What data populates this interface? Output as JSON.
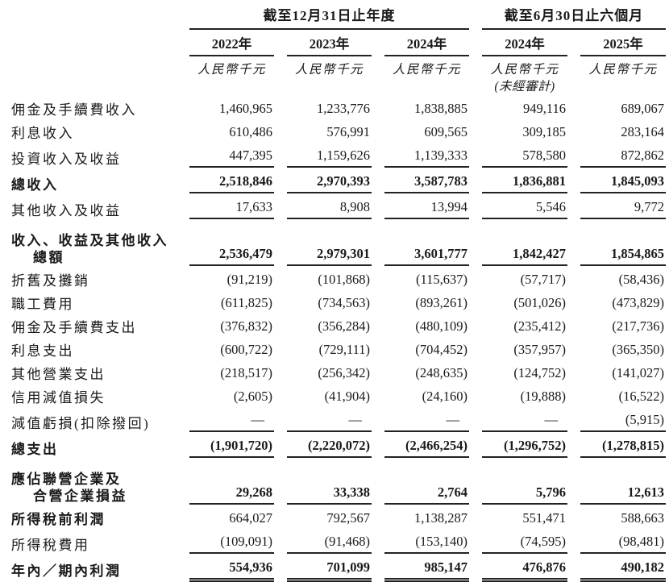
{
  "colors": {
    "text": "#1a1a1a",
    "rule": "#222222",
    "background": "#ffffff"
  },
  "header": {
    "groups": [
      {
        "label": "截至12月31日止年度",
        "span": 3
      },
      {
        "label": "截至6月30日止六個月",
        "span": 2
      }
    ],
    "columns": [
      {
        "year": "2022年",
        "unit": "人民幣千元",
        "note": ""
      },
      {
        "year": "2023年",
        "unit": "人民幣千元",
        "note": ""
      },
      {
        "year": "2024年",
        "unit": "人民幣千元",
        "note": ""
      },
      {
        "year": "2024年",
        "unit": "人民幣千元",
        "note": "(未經審計)"
      },
      {
        "year": "2025年",
        "unit": "人民幣千元",
        "note": ""
      }
    ]
  },
  "rows": [
    {
      "label": "佣金及手續費收入",
      "values": [
        "1,460,965",
        "1,233,776",
        "1,838,885",
        "949,116",
        "689,067"
      ]
    },
    {
      "label": "利息收入",
      "values": [
        "610,486",
        "576,991",
        "609,565",
        "309,185",
        "283,164"
      ]
    },
    {
      "label": "投資收入及收益",
      "values": [
        "447,395",
        "1,159,626",
        "1,139,333",
        "578,580",
        "872,862"
      ],
      "rule": "single"
    },
    {
      "label": "總收入",
      "bold": true,
      "values": [
        "2,518,846",
        "2,970,393",
        "3,587,783",
        "1,836,881",
        "1,845,093"
      ],
      "rule": "single"
    },
    {
      "label": "其他收入及收益",
      "values": [
        "17,633",
        "8,908",
        "13,994",
        "5,546",
        "9,772"
      ],
      "rule": "single"
    },
    {
      "label": "收入、收益及其他收入",
      "label2": "總額",
      "bold": true,
      "gap_before": true,
      "values": [
        "2,536,479",
        "2,979,301",
        "3,601,777",
        "1,842,427",
        "1,854,865"
      ],
      "rule": "single"
    },
    {
      "label": "折舊及攤銷",
      "values": [
        "(91,219)",
        "(101,868)",
        "(115,637)",
        "(57,717)",
        "(58,436)"
      ]
    },
    {
      "label": "職工費用",
      "values": [
        "(611,825)",
        "(734,563)",
        "(893,261)",
        "(501,026)",
        "(473,829)"
      ]
    },
    {
      "label": "佣金及手續費支出",
      "values": [
        "(376,832)",
        "(356,284)",
        "(480,109)",
        "(235,412)",
        "(217,736)"
      ]
    },
    {
      "label": "利息支出",
      "values": [
        "(600,722)",
        "(729,111)",
        "(704,452)",
        "(357,957)",
        "(365,350)"
      ]
    },
    {
      "label": "其他營業支出",
      "values": [
        "(218,517)",
        "(256,342)",
        "(248,635)",
        "(124,752)",
        "(141,027)"
      ]
    },
    {
      "label": "信用減值損失",
      "values": [
        "(2,605)",
        "(41,904)",
        "(24,160)",
        "(19,888)",
        "(16,522)"
      ]
    },
    {
      "label": "減值虧損(扣除撥回)",
      "values": [
        "—",
        "—",
        "—",
        "—",
        "(5,915)"
      ],
      "rule": "single"
    },
    {
      "label": "總支出",
      "bold": true,
      "values": [
        "(1,901,720)",
        "(2,220,072)",
        "(2,466,254)",
        "(1,296,752)",
        "(1,278,815)"
      ],
      "rule": "single"
    },
    {
      "label": "應佔聯營企業及",
      "label2": "合營企業損益",
      "bold": true,
      "gap_before": true,
      "values": [
        "29,268",
        "33,338",
        "2,764",
        "5,796",
        "12,613"
      ],
      "rule": "single"
    },
    {
      "label": "所得稅前利潤",
      "bold_label": true,
      "values": [
        "664,027",
        "792,567",
        "1,138,287",
        "551,471",
        "588,663"
      ]
    },
    {
      "label": "所得稅費用",
      "values": [
        "(109,091)",
        "(91,468)",
        "(153,140)",
        "(74,595)",
        "(98,481)"
      ],
      "rule": "single"
    },
    {
      "label": "年內／期內利潤",
      "bold": true,
      "values": [
        "554,936",
        "701,099",
        "985,147",
        "476,876",
        "490,182"
      ],
      "rule": "double"
    }
  ]
}
